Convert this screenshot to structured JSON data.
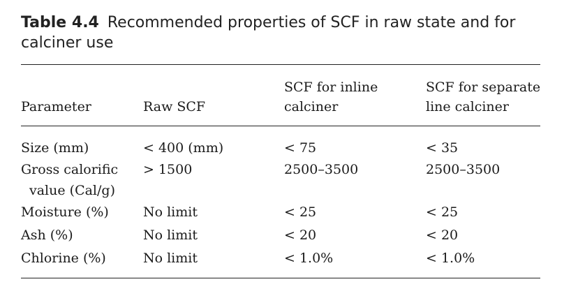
{
  "caption": {
    "label": "Table 4.4",
    "text": "Recommended properties of SCF in raw state and for calciner use"
  },
  "table": {
    "headers": {
      "parameter": "Parameter",
      "raw": "Raw SCF",
      "inline_line1": "SCF for inline",
      "inline_line2": "calciner",
      "separate_line1": "SCF for separate",
      "separate_line2": "line calciner"
    },
    "rows": [
      {
        "parameter": "Size (mm)",
        "raw": "< 400 (mm)",
        "inline": "< 75",
        "separate": "< 35"
      },
      {
        "parameter": "Gross calorific",
        "parameter_cont": "value (Cal/g)",
        "raw": "> 1500",
        "inline": "2500–3500",
        "separate": "2500–3500"
      },
      {
        "parameter": "Moisture (%)",
        "raw": "No limit",
        "inline": "< 25",
        "separate": "< 25"
      },
      {
        "parameter": "Ash (%)",
        "raw": "No limit",
        "inline": "< 20",
        "separate": "< 20"
      },
      {
        "parameter": "Chlorine (%)",
        "raw": "No limit",
        "inline": "< 1.0%",
        "separate": "< 1.0%"
      }
    ]
  }
}
